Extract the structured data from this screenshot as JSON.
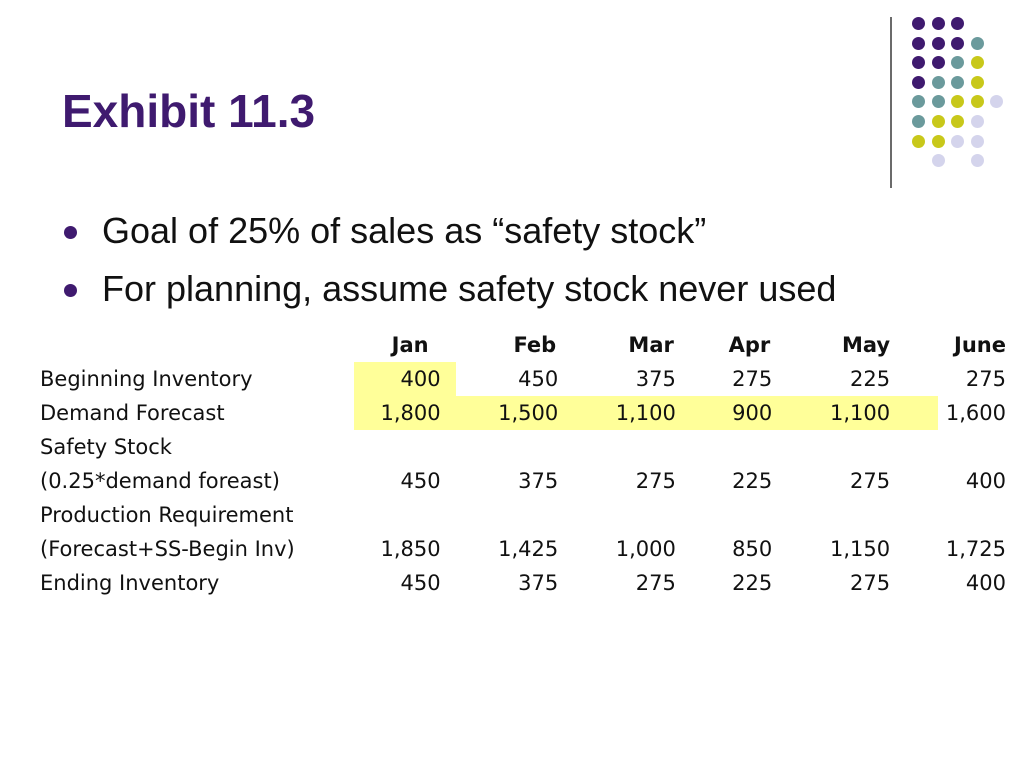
{
  "slide": {
    "title": "Exhibit 11.3",
    "bullets": [
      "Goal of 25% of sales as “safety stock”",
      "For planning, assume safety stock never used"
    ]
  },
  "colors": {
    "title": "#3f1a6f",
    "dark_purple": "#3f1a6f",
    "teal": "#6b9a9c",
    "olive_yellow": "#c8c81a",
    "lavender": "#d4d4ec",
    "highlight": "#ffff99"
  },
  "decoration": {
    "dot_grid_colors": [
      [
        "dark_purple",
        "dark_purple",
        "dark_purple",
        null
      ],
      [
        "dark_purple",
        "dark_purple",
        "dark_purple",
        "teal"
      ],
      [
        "dark_purple",
        "dark_purple",
        "teal",
        "olive_yellow"
      ],
      [
        "dark_purple",
        "teal",
        "teal",
        "olive_yellow"
      ],
      [
        "teal",
        "teal",
        "olive_yellow",
        "olive_yellow",
        "lavender"
      ],
      [
        "teal",
        "olive_yellow",
        "olive_yellow",
        "lavender"
      ],
      [
        "olive_yellow",
        "olive_yellow",
        "lavender",
        "lavender"
      ],
      [
        null,
        "lavender",
        null,
        "lavender"
      ]
    ]
  },
  "table": {
    "columns": [
      "Jan",
      "Feb",
      "Mar",
      "Apr",
      "May",
      "June"
    ],
    "rows": [
      {
        "label": "Beginning Inventory",
        "values": [
          "400",
          "450",
          "375",
          "275",
          "225",
          "275"
        ]
      },
      {
        "label": "Demand Forecast",
        "values": [
          "1,800",
          "1,500",
          "1,100",
          "900",
          "1,100",
          "1,600"
        ]
      },
      {
        "label": "Safety Stock",
        "values": [
          "",
          "",
          "",
          "",
          "",
          ""
        ]
      },
      {
        "label": "(0.25*demand foreast)",
        "values": [
          "450",
          "375",
          "275",
          "225",
          "275",
          "400"
        ]
      },
      {
        "label": "Production Requirement",
        "values": [
          "",
          "",
          "",
          "",
          "",
          ""
        ]
      },
      {
        "label": "(Forecast+SS-Begin Inv)",
        "values": [
          "1,850",
          "1,425",
          "1,000",
          "850",
          "1,150",
          "1,725"
        ]
      },
      {
        "label": "Ending Inventory",
        "values": [
          "450",
          "375",
          "275",
          "225",
          "275",
          "400"
        ]
      }
    ]
  }
}
